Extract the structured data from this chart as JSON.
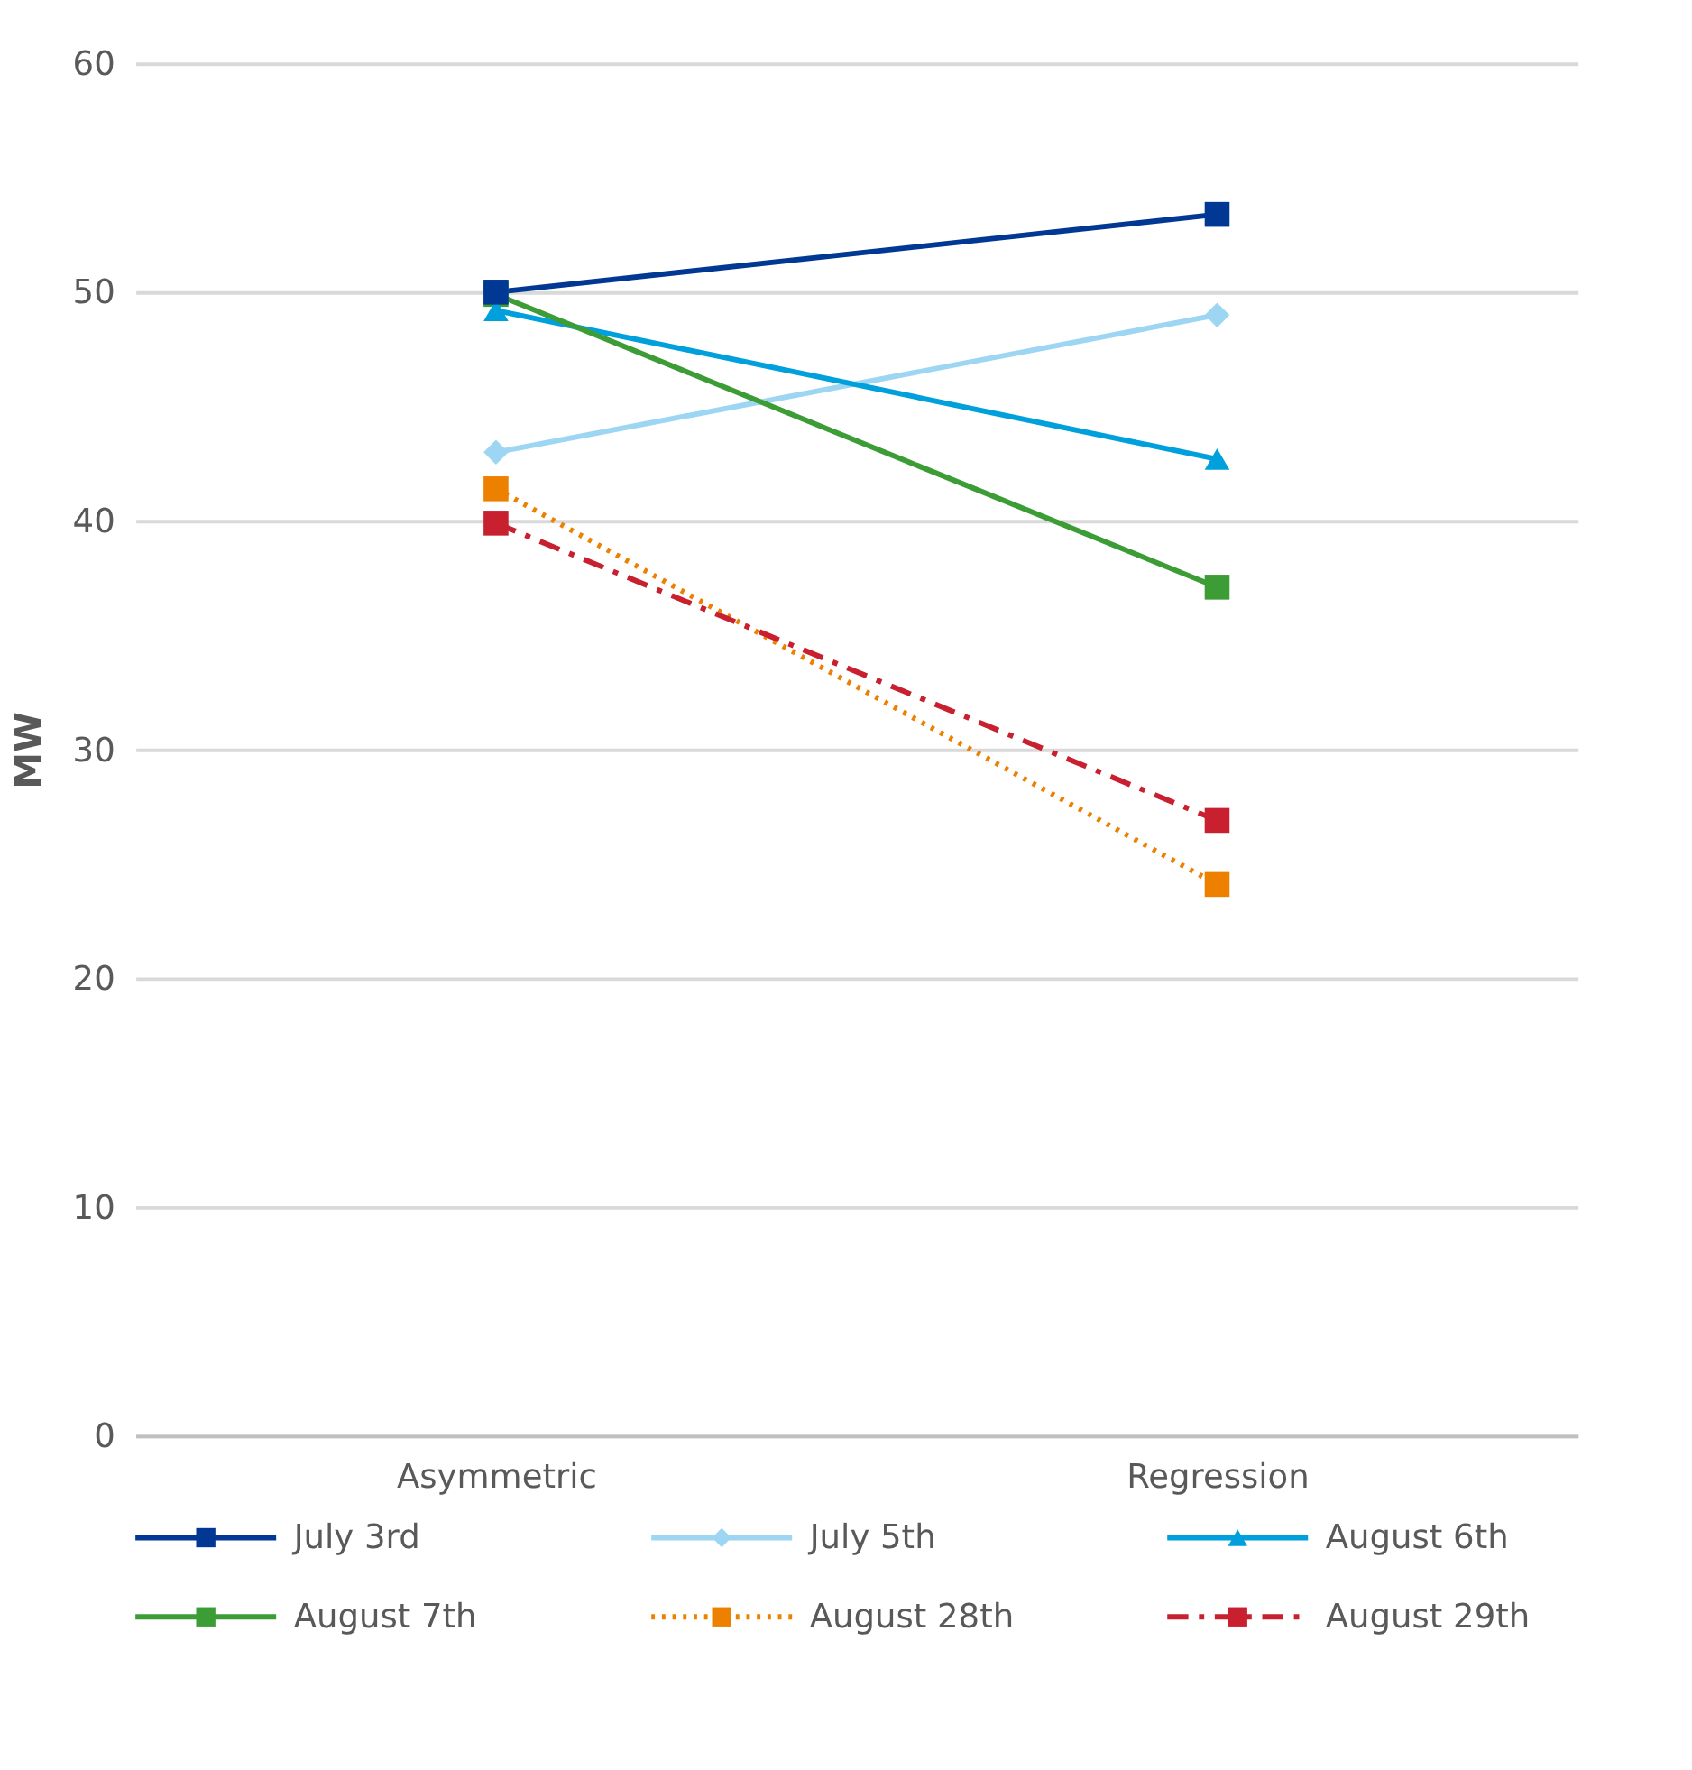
{
  "chart_data": {
    "type": "line",
    "ylabel": "MW",
    "categories": [
      "Asymmetric",
      "Regression"
    ],
    "ylim": [
      0,
      60
    ],
    "yticks": [
      0,
      10,
      20,
      30,
      40,
      50,
      60
    ],
    "grid": "y",
    "legend": "bottom",
    "series": [
      {
        "name": "July 3rd",
        "color": "#003894",
        "values": [
          50.0,
          53.4
        ],
        "marker": "square",
        "line_style": "solid"
      },
      {
        "name": "July 5th",
        "color": "#9dd6f2",
        "values": [
          43.0,
          49.0
        ],
        "marker": "diamond",
        "line_style": "solid"
      },
      {
        "name": "August 6th",
        "color": "#00a0dc",
        "values": [
          49.2,
          42.7
        ],
        "marker": "triangle",
        "line_style": "solid"
      },
      {
        "name": "August 7th",
        "color": "#3c9c35",
        "values": [
          49.9,
          37.1
        ],
        "marker": "square",
        "line_style": "solid"
      },
      {
        "name": "August 28th",
        "color": "#ee8000",
        "values": [
          41.4,
          24.1
        ],
        "marker": "square",
        "line_style": "dotted"
      },
      {
        "name": "August 29th",
        "color": "#c8202f",
        "values": [
          39.9,
          26.9
        ],
        "marker": "square",
        "line_style": "dashed"
      }
    ]
  }
}
